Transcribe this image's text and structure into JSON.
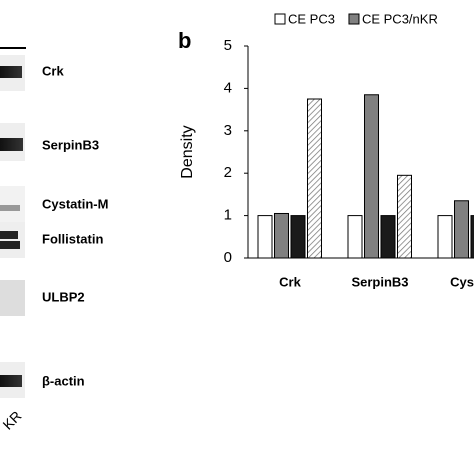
{
  "panel_a": {
    "labels": [
      "Crk",
      "SerpinB3",
      "Cystatin-M",
      "Follistatin",
      "ULBP2",
      "β-actin"
    ],
    "lane_label": "KR"
  },
  "chart_data": {
    "type": "bar",
    "panel_letter": "b",
    "ylabel": "Density",
    "categories": [
      "Crk",
      "SerpinB3",
      "Cystat"
    ],
    "series": [
      {
        "name": "CE PC3",
        "color": "#ffffff",
        "values": [
          1,
          1,
          1
        ]
      },
      {
        "name": "CE PC3/nKR",
        "color": "#808080",
        "values": [
          1.05,
          3.85,
          1.35
        ]
      },
      {
        "color": "#1a1a1a",
        "values": [
          1,
          1,
          1
        ]
      },
      {
        "color": "#ffffff",
        "hatch": true,
        "values": [
          3.75,
          1.95,
          null
        ]
      }
    ],
    "ylim": [
      0,
      5
    ],
    "yticks": [
      0,
      1,
      2,
      3,
      4,
      5
    ]
  }
}
